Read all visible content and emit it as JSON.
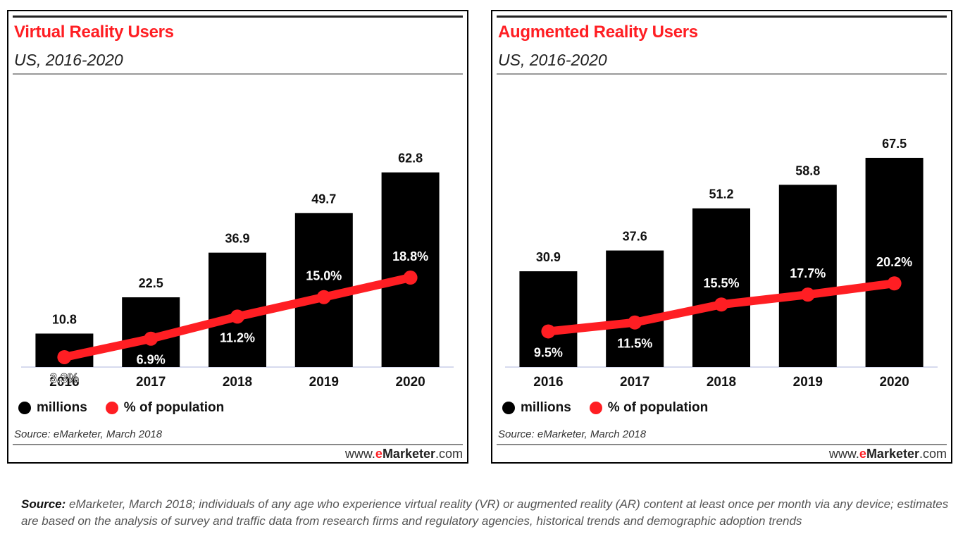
{
  "chart_data": [
    {
      "type": "bar",
      "title": "Virtual Reality Users",
      "subtitle": "US, 2016-2020",
      "categories": [
        "2016",
        "2017",
        "2018",
        "2019",
        "2020"
      ],
      "series": [
        {
          "name": "millions",
          "type": "bar",
          "values": [
            10.8,
            22.5,
            36.9,
            49.7,
            62.8
          ],
          "labels": [
            "10.8",
            "22.5",
            "36.9",
            "49.7",
            "62.8"
          ],
          "color": "#000000"
        },
        {
          "name": "% of population",
          "type": "line",
          "values": [
            3.3,
            6.9,
            11.2,
            15.0,
            18.8
          ],
          "labels": [
            "3.3%",
            "6.9%",
            "11.2%",
            "15.0%",
            "18.8%"
          ],
          "color": "#ff1e23"
        }
      ],
      "xlabel": "",
      "ylabel": "",
      "ylim": [
        0,
        75
      ],
      "y2lim": [
        0,
        35
      ],
      "grid": false,
      "legend_position": "bottom-left",
      "legend": [
        "millions",
        "% of population"
      ],
      "source": "Source: eMarketer, March 2018",
      "brand": {
        "prefix": "www.",
        "e": "e",
        "name": "Marketer",
        "suffix": ".com"
      }
    },
    {
      "type": "bar",
      "title": "Augmented Reality Users",
      "subtitle": "US, 2016-2020",
      "categories": [
        "2016",
        "2017",
        "2018",
        "2019",
        "2020"
      ],
      "series": [
        {
          "name": "millions",
          "type": "bar",
          "values": [
            30.9,
            37.6,
            51.2,
            58.8,
            67.5
          ],
          "labels": [
            "30.9",
            "37.6",
            "51.2",
            "58.8",
            "67.5"
          ],
          "color": "#000000"
        },
        {
          "name": "% of population",
          "type": "line",
          "values": [
            9.5,
            11.5,
            15.5,
            17.7,
            20.2
          ],
          "labels": [
            "9.5%",
            "11.5%",
            "15.5%",
            "17.7%",
            "20.2%"
          ],
          "color": "#ff1e23"
        }
      ],
      "xlabel": "",
      "ylabel": "",
      "ylim": [
        0,
        75
      ],
      "y2lim": [
        0,
        40
      ],
      "grid": false,
      "legend_position": "bottom-left",
      "legend": [
        "millions",
        "% of population"
      ],
      "source": "Source: eMarketer, March 2018",
      "brand": {
        "prefix": "www.",
        "e": "e",
        "name": "Marketer",
        "suffix": ".com"
      }
    }
  ],
  "footnote": {
    "label": "Source:",
    "text": " eMarketer, March 2018; individuals of any age who experience virtual reality (VR) or augmented reality (AR) content at least once per month via any device; estimates are based on the analysis of survey and traffic data from research firms and regulatory agencies, historical trends and demographic adoption trends"
  }
}
